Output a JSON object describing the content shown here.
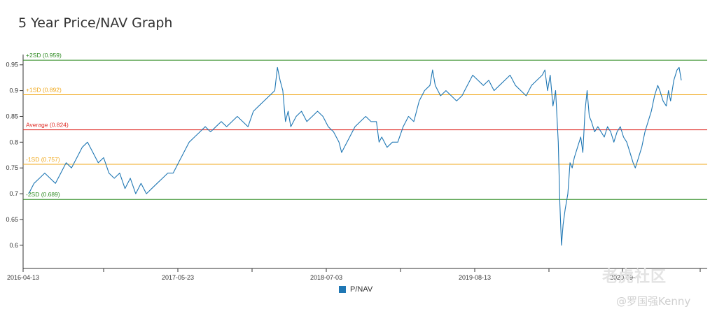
{
  "title": "5 Year Price/NAV Graph",
  "chart_data": {
    "type": "line",
    "title": "5 Year Price/NAV Graph",
    "xlabel": "",
    "ylabel": "",
    "ylim": [
      0.555,
      0.97
    ],
    "yticks": [
      "0.6",
      "0.65",
      "0.7",
      "0.75",
      "0.8",
      "0.85",
      "0.9",
      "0.95"
    ],
    "xticks": [
      "2016-04-13",
      "2017-05-23",
      "2018-07-03",
      "2019-08-13",
      "2020-09-"
    ],
    "grid": false,
    "legend": "bottom-center",
    "series": [
      {
        "name": "P/NAV",
        "color": "#1f77b4",
        "points": [
          [
            0,
            0.7
          ],
          [
            10,
            0.72
          ],
          [
            20,
            0.73
          ],
          [
            30,
            0.74
          ],
          [
            40,
            0.73
          ],
          [
            50,
            0.72
          ],
          [
            60,
            0.74
          ],
          [
            70,
            0.76
          ],
          [
            80,
            0.75
          ],
          [
            90,
            0.77
          ],
          [
            100,
            0.79
          ],
          [
            110,
            0.8
          ],
          [
            120,
            0.78
          ],
          [
            130,
            0.76
          ],
          [
            140,
            0.77
          ],
          [
            150,
            0.74
          ],
          [
            160,
            0.73
          ],
          [
            170,
            0.74
          ],
          [
            180,
            0.71
          ],
          [
            190,
            0.73
          ],
          [
            200,
            0.7
          ],
          [
            210,
            0.72
          ],
          [
            220,
            0.7
          ],
          [
            230,
            0.71
          ],
          [
            240,
            0.72
          ],
          [
            250,
            0.73
          ],
          [
            260,
            0.74
          ],
          [
            270,
            0.74
          ],
          [
            280,
            0.76
          ],
          [
            290,
            0.78
          ],
          [
            300,
            0.8
          ],
          [
            310,
            0.81
          ],
          [
            320,
            0.82
          ],
          [
            330,
            0.83
          ],
          [
            340,
            0.82
          ],
          [
            350,
            0.83
          ],
          [
            360,
            0.84
          ],
          [
            370,
            0.83
          ],
          [
            380,
            0.84
          ],
          [
            390,
            0.85
          ],
          [
            400,
            0.84
          ],
          [
            410,
            0.83
          ],
          [
            420,
            0.86
          ],
          [
            430,
            0.87
          ],
          [
            440,
            0.88
          ],
          [
            450,
            0.89
          ],
          [
            460,
            0.9
          ],
          [
            465,
            0.945
          ],
          [
            470,
            0.92
          ],
          [
            475,
            0.9
          ],
          [
            480,
            0.84
          ],
          [
            485,
            0.86
          ],
          [
            490,
            0.83
          ],
          [
            500,
            0.85
          ],
          [
            510,
            0.86
          ],
          [
            520,
            0.84
          ],
          [
            530,
            0.85
          ],
          [
            540,
            0.86
          ],
          [
            550,
            0.85
          ],
          [
            560,
            0.83
          ],
          [
            570,
            0.82
          ],
          [
            580,
            0.8
          ],
          [
            585,
            0.78
          ],
          [
            590,
            0.79
          ],
          [
            600,
            0.81
          ],
          [
            610,
            0.83
          ],
          [
            620,
            0.84
          ],
          [
            630,
            0.85
          ],
          [
            640,
            0.84
          ],
          [
            650,
            0.84
          ],
          [
            655,
            0.8
          ],
          [
            660,
            0.81
          ],
          [
            670,
            0.79
          ],
          [
            680,
            0.8
          ],
          [
            690,
            0.8
          ],
          [
            700,
            0.83
          ],
          [
            710,
            0.85
          ],
          [
            720,
            0.84
          ],
          [
            730,
            0.88
          ],
          [
            740,
            0.9
          ],
          [
            750,
            0.91
          ],
          [
            755,
            0.94
          ],
          [
            760,
            0.91
          ],
          [
            770,
            0.89
          ],
          [
            780,
            0.9
          ],
          [
            790,
            0.89
          ],
          [
            800,
            0.88
          ],
          [
            810,
            0.89
          ],
          [
            820,
            0.91
          ],
          [
            830,
            0.93
          ],
          [
            840,
            0.92
          ],
          [
            850,
            0.91
          ],
          [
            860,
            0.92
          ],
          [
            870,
            0.9
          ],
          [
            880,
            0.91
          ],
          [
            890,
            0.92
          ],
          [
            900,
            0.93
          ],
          [
            910,
            0.91
          ],
          [
            920,
            0.9
          ],
          [
            930,
            0.89
          ],
          [
            940,
            0.91
          ],
          [
            950,
            0.92
          ],
          [
            960,
            0.93
          ],
          [
            965,
            0.94
          ],
          [
            970,
            0.9
          ],
          [
            975,
            0.93
          ],
          [
            980,
            0.87
          ],
          [
            985,
            0.9
          ],
          [
            990,
            0.8
          ],
          [
            993,
            0.68
          ],
          [
            996,
            0.6
          ],
          [
            999,
            0.64
          ],
          [
            1003,
            0.67
          ],
          [
            1008,
            0.7
          ],
          [
            1012,
            0.76
          ],
          [
            1016,
            0.75
          ],
          [
            1020,
            0.77
          ],
          [
            1026,
            0.79
          ],
          [
            1032,
            0.81
          ],
          [
            1036,
            0.78
          ],
          [
            1040,
            0.86
          ],
          [
            1044,
            0.9
          ],
          [
            1048,
            0.85
          ],
          [
            1052,
            0.84
          ],
          [
            1058,
            0.82
          ],
          [
            1064,
            0.83
          ],
          [
            1070,
            0.82
          ],
          [
            1076,
            0.81
          ],
          [
            1082,
            0.83
          ],
          [
            1088,
            0.82
          ],
          [
            1094,
            0.8
          ],
          [
            1100,
            0.82
          ],
          [
            1106,
            0.83
          ],
          [
            1112,
            0.81
          ],
          [
            1118,
            0.8
          ],
          [
            1124,
            0.78
          ],
          [
            1130,
            0.76
          ],
          [
            1134,
            0.75
          ],
          [
            1140,
            0.77
          ],
          [
            1146,
            0.79
          ],
          [
            1152,
            0.82
          ],
          [
            1158,
            0.84
          ],
          [
            1164,
            0.86
          ],
          [
            1170,
            0.89
          ],
          [
            1176,
            0.91
          ],
          [
            1180,
            0.9
          ],
          [
            1186,
            0.88
          ],
          [
            1192,
            0.87
          ],
          [
            1196,
            0.9
          ],
          [
            1200,
            0.88
          ],
          [
            1206,
            0.92
          ],
          [
            1212,
            0.94
          ],
          [
            1216,
            0.945
          ],
          [
            1220,
            0.92
          ]
        ]
      }
    ],
    "reference_lines": [
      {
        "label": "+2SD (0.959)",
        "value": 0.959,
        "color": "#2e8b22"
      },
      {
        "label": "+1SD (0.892)",
        "value": 0.892,
        "color": "#f0a81c"
      },
      {
        "label": "Average (0.824)",
        "value": 0.824,
        "color": "#e0312b"
      },
      {
        "label": "-1SD (0.757)",
        "value": 0.757,
        "color": "#f0a81c"
      },
      {
        "label": "-2SD (0.689)",
        "value": 0.689,
        "color": "#2e8b22"
      }
    ]
  },
  "legend": {
    "label": "P/NAV",
    "color": "#1f77b4"
  },
  "watermark": {
    "line1": "老虎社区",
    "line2": "@罗国强Kenny"
  }
}
